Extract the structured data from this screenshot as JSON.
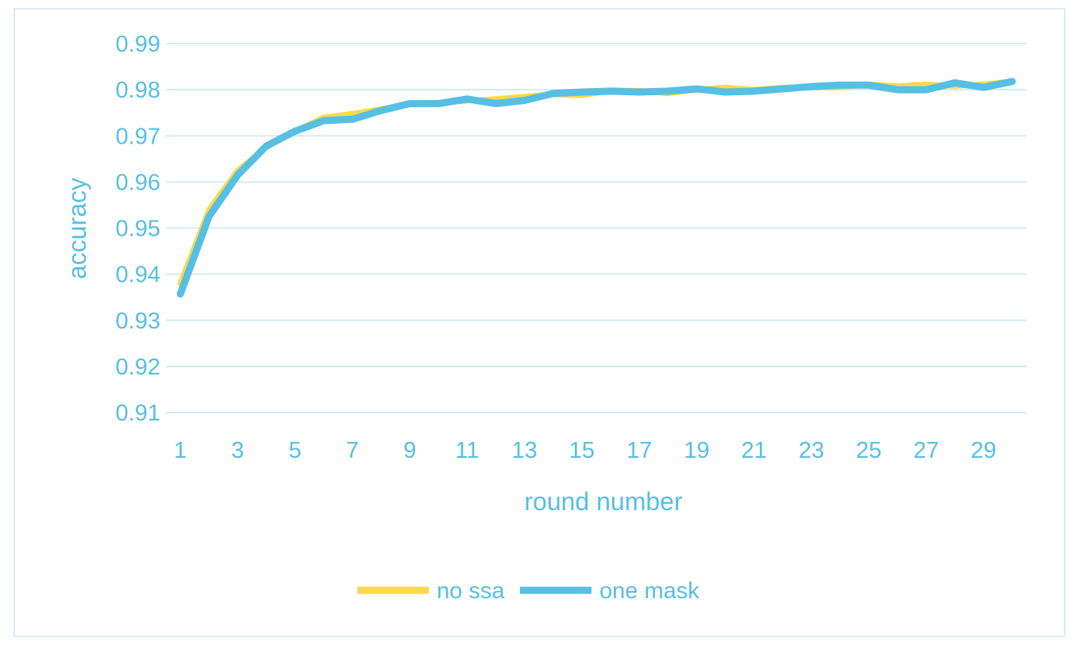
{
  "chart_data": {
    "type": "line",
    "title": "",
    "xlabel": "round number",
    "ylabel": "accuracy",
    "x": [
      1,
      2,
      3,
      4,
      5,
      6,
      7,
      8,
      9,
      10,
      11,
      12,
      13,
      14,
      15,
      16,
      17,
      18,
      19,
      20,
      21,
      22,
      23,
      24,
      25,
      26,
      27,
      28,
      29,
      30
    ],
    "x_tick_labels": [
      "1",
      "3",
      "5",
      "7",
      "9",
      "11",
      "13",
      "15",
      "17",
      "19",
      "21",
      "23",
      "25",
      "27",
      "29"
    ],
    "y_tick_labels": [
      "0.91",
      "0.92",
      "0.93",
      "0.94",
      "0.95",
      "0.96",
      "0.97",
      "0.98",
      "0.99"
    ],
    "ylim": [
      0.91,
      0.99
    ],
    "grid": true,
    "legend_position": "bottom",
    "series": [
      {
        "name": "no ssa",
        "color": "#fcd94c",
        "values": [
          0.938,
          0.954,
          0.9625,
          0.9675,
          0.971,
          0.974,
          0.9748,
          0.9758,
          0.977,
          0.9772,
          0.9776,
          0.978,
          0.9785,
          0.979,
          0.9788,
          0.9798,
          0.9798,
          0.9792,
          0.98,
          0.9805,
          0.98,
          0.9805,
          0.9805,
          0.9805,
          0.9812,
          0.9808,
          0.9812,
          0.9808,
          0.9812,
          0.9818
        ]
      },
      {
        "name": "one mask",
        "color": "#56bfe4",
        "values": [
          0.9357,
          0.9525,
          0.9615,
          0.9678,
          0.971,
          0.9733,
          0.9736,
          0.9755,
          0.977,
          0.977,
          0.978,
          0.977,
          0.9777,
          0.9792,
          0.9795,
          0.9797,
          0.9795,
          0.9797,
          0.9802,
          0.9795,
          0.9797,
          0.9802,
          0.9807,
          0.981,
          0.981,
          0.98,
          0.98,
          0.9815,
          0.9805,
          0.9818
        ]
      }
    ]
  }
}
